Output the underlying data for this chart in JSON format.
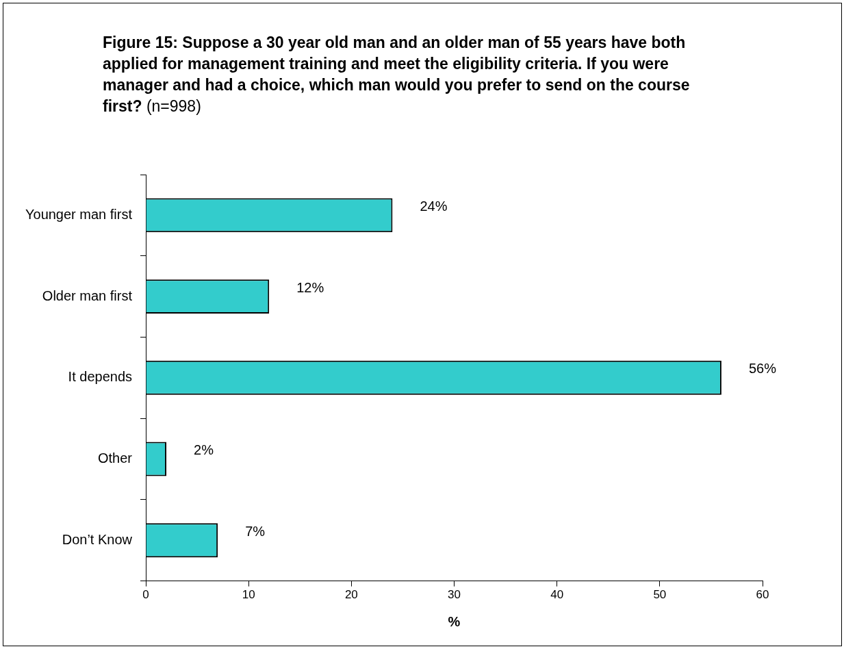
{
  "chart_data": {
    "type": "bar",
    "orientation": "horizontal",
    "title": "Figure 15:  Suppose a 30 year old man and an older man of 55 years have both applied for management training and meet the eligibility criteria.  If you were manager and had a choice, which man would you prefer to send on the course first?",
    "subtitle": "(n=998)",
    "xlabel": "%",
    "categories": [
      "Younger man first",
      "Older man first",
      "It depends",
      "Other",
      "Don’t Know"
    ],
    "values": [
      24,
      12,
      56,
      2,
      7
    ],
    "value_labels": [
      "24%",
      "12%",
      "56%",
      "2%",
      "7%"
    ],
    "color": "#33cccc",
    "xlim": [
      0,
      60
    ],
    "xticks": [
      0,
      10,
      20,
      30,
      40,
      50,
      60
    ]
  }
}
